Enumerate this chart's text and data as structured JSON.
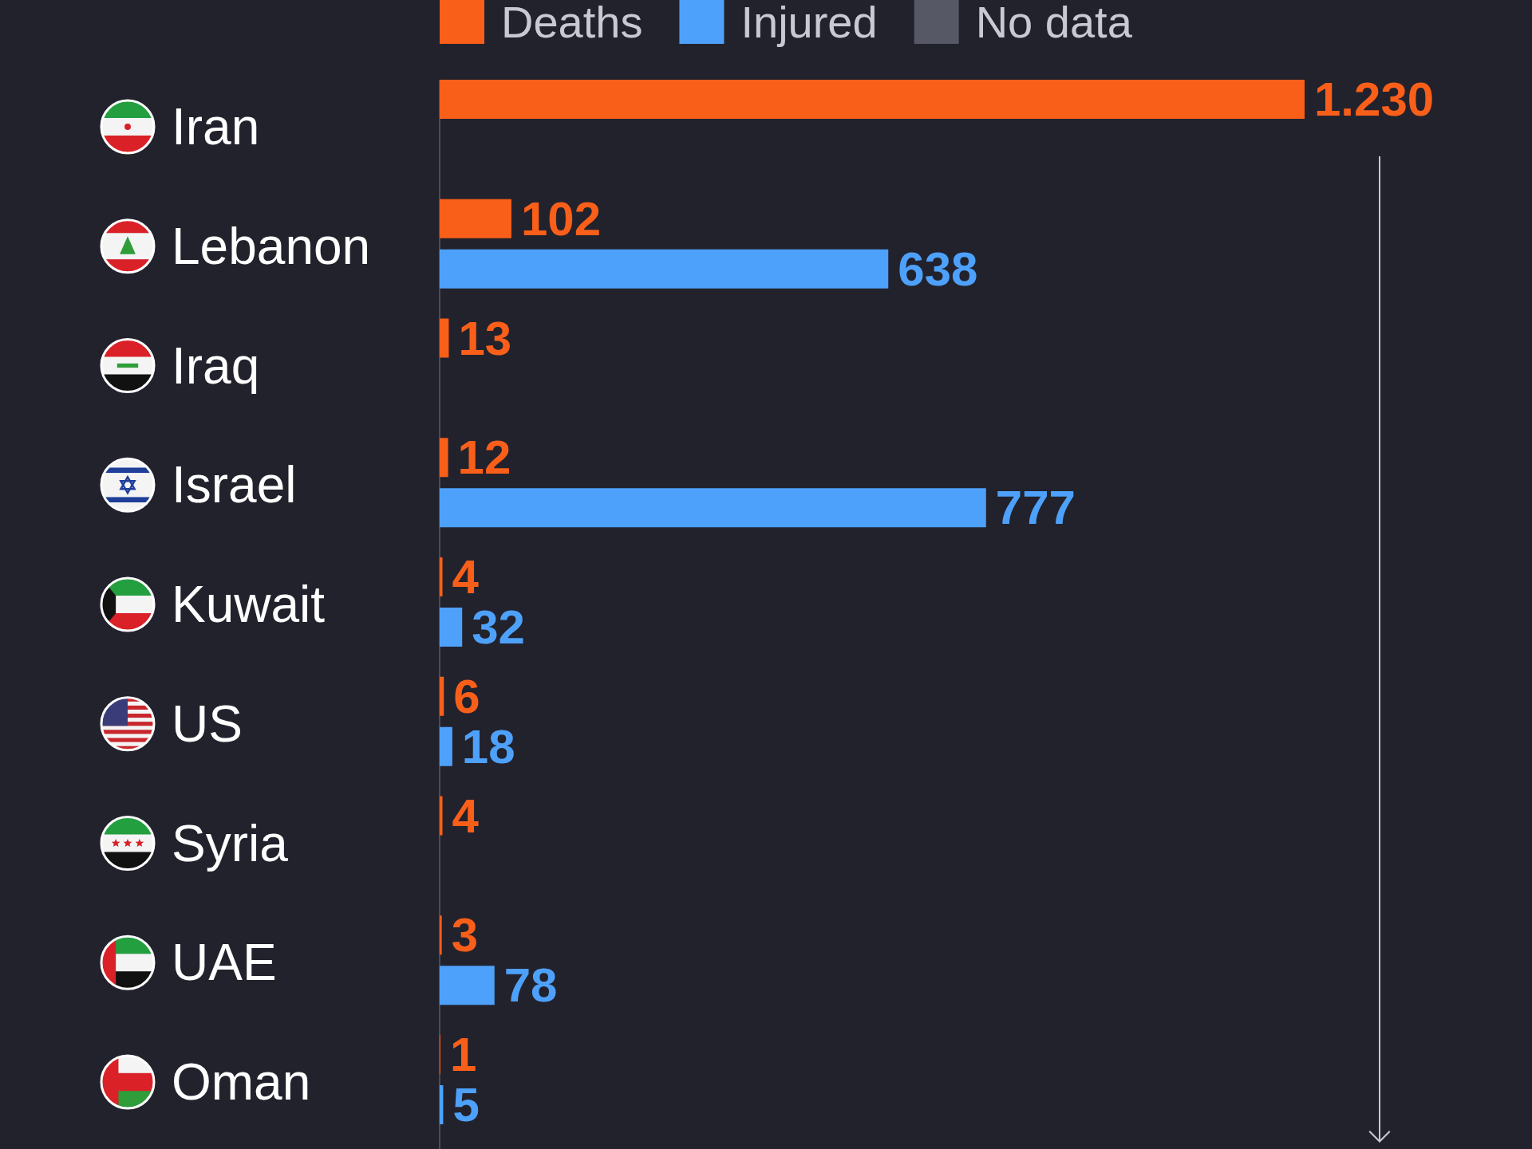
{
  "chart_data": {
    "type": "bar",
    "orientation": "horizontal",
    "categories": [
      "Iran",
      "Lebanon",
      "Iraq",
      "Israel",
      "Kuwait",
      "US",
      "Syria",
      "UAE",
      "Oman"
    ],
    "series": [
      {
        "name": "Deaths",
        "color": "#fa5f1a",
        "values": [
          1230,
          102,
          13,
          12,
          4,
          6,
          4,
          3,
          1
        ],
        "value_labels": [
          "1.230",
          "102",
          "13",
          "12",
          "4",
          "6",
          "4",
          "3",
          "1"
        ]
      },
      {
        "name": "Injured",
        "color": "#4ea1fa",
        "values": [
          null,
          638,
          null,
          777,
          32,
          18,
          null,
          78,
          5
        ],
        "value_labels": [
          null,
          "638",
          null,
          "777",
          "32",
          "18",
          null,
          "78",
          "5"
        ]
      },
      {
        "name": "No data",
        "color": "#575865",
        "values": [
          null,
          null,
          null,
          null,
          null,
          null,
          null,
          null,
          null
        ]
      }
    ],
    "tick_labels": "y",
    "legend": "top"
  }
}
